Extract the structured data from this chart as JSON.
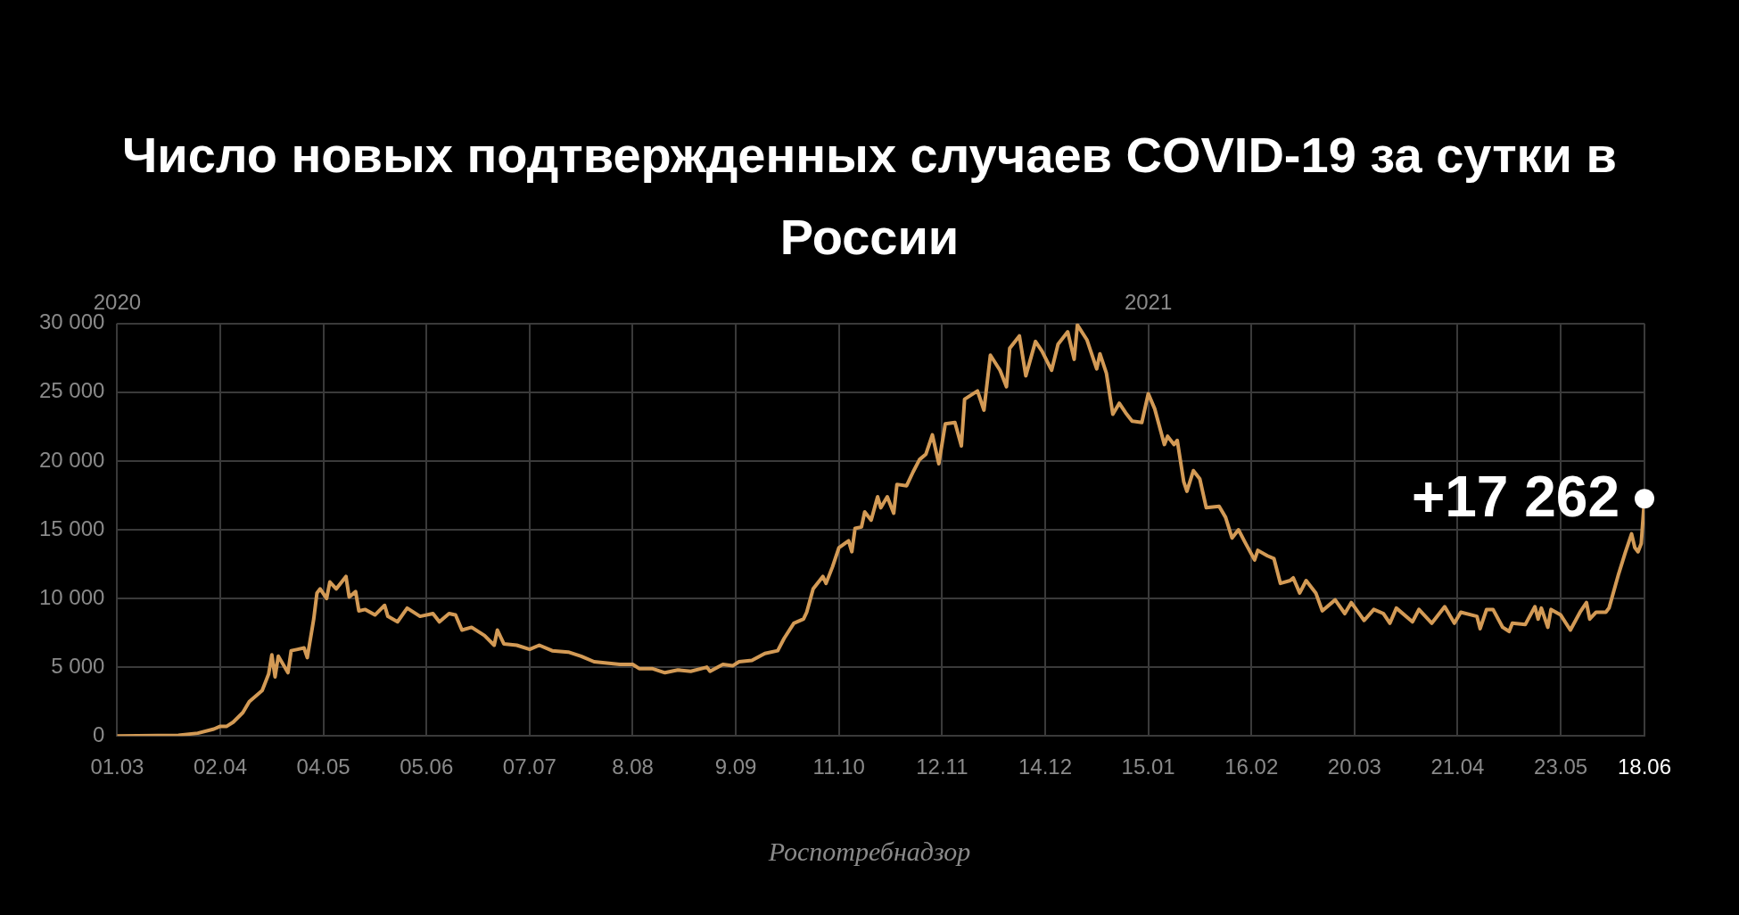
{
  "chart_data": {
    "type": "line",
    "title": "Число новых подтвержденных случаев COVID-19 за сутки в России",
    "annotations": [
      "Роспотребнадзор",
      {
        "text": "+17 262",
        "x": "2021-06-18",
        "y": 17262
      }
    ],
    "series": [
      {
        "color": "#d39a55",
        "x": [
          "2020-03-01",
          "2020-03-20",
          "2020-03-26",
          "2020-03-31",
          "2020-04-02",
          "2020-04-04",
          "2020-04-06",
          "2020-04-09",
          "2020-04-11",
          "2020-04-15",
          "2020-04-17",
          "2020-04-18",
          "2020-04-19",
          "2020-04-20",
          "2020-04-23",
          "2020-04-24",
          "2020-04-26",
          "2020-04-28",
          "2020-04-29",
          "2020-05-01",
          "2020-05-02",
          "2020-05-03",
          "2020-05-05",
          "2020-05-06",
          "2020-05-08",
          "2020-05-11",
          "2020-05-12",
          "2020-05-14",
          "2020-05-15",
          "2020-05-17",
          "2020-05-20",
          "2020-05-23",
          "2020-05-24",
          "2020-05-27",
          "2020-05-30",
          "2020-06-03",
          "2020-06-07",
          "2020-06-09",
          "2020-06-12",
          "2020-06-14",
          "2020-06-16",
          "2020-06-19",
          "2020-06-23",
          "2020-06-26",
          "2020-06-27",
          "2020-06-29",
          "2020-07-03",
          "2020-07-07",
          "2020-07-10",
          "2020-07-14",
          "2020-07-19",
          "2020-07-23",
          "2020-07-27",
          "2020-08-04",
          "2020-08-08",
          "2020-08-10",
          "2020-08-14",
          "2020-08-18",
          "2020-08-22",
          "2020-08-26",
          "2020-08-31",
          "2020-09-01",
          "2020-09-05",
          "2020-09-08",
          "2020-09-10",
          "2020-09-14",
          "2020-09-18",
          "2020-09-22",
          "2020-09-24",
          "2020-09-27",
          "2020-09-30",
          "2020-10-01",
          "2020-10-03",
          "2020-10-06",
          "2020-10-07",
          "2020-10-09",
          "2020-10-11",
          "2020-10-14",
          "2020-10-15",
          "2020-10-16",
          "2020-10-18",
          "2020-10-19",
          "2020-10-21",
          "2020-10-23",
          "2020-10-24",
          "2020-10-26",
          "2020-10-28",
          "2020-10-29",
          "2020-11-01",
          "2020-11-03",
          "2020-11-05",
          "2020-11-07",
          "2020-11-09",
          "2020-11-11",
          "2020-11-13",
          "2020-11-16",
          "2020-11-18",
          "2020-11-19",
          "2020-11-23",
          "2020-11-25",
          "2020-11-27",
          "2020-11-30",
          "2020-12-02",
          "2020-12-03",
          "2020-12-06",
          "2020-12-08",
          "2020-12-11",
          "2020-12-13",
          "2020-12-16",
          "2020-12-18",
          "2020-12-21",
          "2020-12-23",
          "2020-12-24",
          "2020-12-27",
          "2020-12-30",
          "2020-12-31",
          "2021-01-02",
          "2021-01-04",
          "2021-01-06",
          "2021-01-08",
          "2021-01-10",
          "2021-01-13",
          "2021-01-15",
          "2021-01-17",
          "2021-01-20",
          "2021-01-21",
          "2021-01-23",
          "2021-01-24",
          "2021-01-26",
          "2021-01-27",
          "2021-01-29",
          "2021-01-31",
          "2021-02-02",
          "2021-02-06",
          "2021-02-08",
          "2021-02-10",
          "2021-02-12",
          "2021-02-14",
          "2021-02-17",
          "2021-02-18",
          "2021-02-21",
          "2021-02-23",
          "2021-02-25",
          "2021-02-28",
          "2021-03-01",
          "2021-03-03",
          "2021-03-05",
          "2021-03-08",
          "2021-03-10",
          "2021-03-14",
          "2021-03-17",
          "2021-03-19",
          "2021-03-23",
          "2021-03-26",
          "2021-03-29",
          "2021-03-31",
          "2021-04-02",
          "2021-04-07",
          "2021-04-09",
          "2021-04-13",
          "2021-04-17",
          "2021-04-20",
          "2021-04-22",
          "2021-04-27",
          "2021-04-28",
          "2021-04-30",
          "2021-05-02",
          "2021-05-05",
          "2021-05-07",
          "2021-05-08",
          "2021-05-12",
          "2021-05-15",
          "2021-05-16",
          "2021-05-17",
          "2021-05-19",
          "2021-05-20",
          "2021-05-23",
          "2021-05-26",
          "2021-05-29",
          "2021-05-31",
          "2021-06-01",
          "2021-06-03",
          "2021-06-06",
          "2021-06-07",
          "2021-06-10",
          "2021-06-12",
          "2021-06-14",
          "2021-06-15",
          "2021-06-16",
          "2021-06-17",
          "2021-06-18"
        ],
        "values": [
          0,
          50,
          200,
          500,
          700,
          700,
          1000,
          1700,
          2500,
          3300,
          4500,
          5900,
          4300,
          5800,
          4600,
          6200,
          6300,
          6400,
          5700,
          8500,
          10400,
          10700,
          10000,
          11200,
          10700,
          11600,
          10100,
          10500,
          9100,
          9200,
          8800,
          9500,
          8700,
          8300,
          9300,
          8700,
          8900,
          8300,
          8900,
          8800,
          7700,
          7900,
          7300,
          6600,
          7700,
          6700,
          6600,
          6300,
          6600,
          6200,
          6100,
          5800,
          5400,
          5200,
          5200,
          4900,
          4900,
          4600,
          4800,
          4700,
          5000,
          4700,
          5200,
          5100,
          5400,
          5500,
          6000,
          6200,
          7100,
          8200,
          8500,
          9000,
          10700,
          11600,
          11100,
          12300,
          13700,
          14200,
          13400,
          15100,
          15200,
          16300,
          15700,
          17400,
          16600,
          17400,
          16200,
          18300,
          18200,
          19200,
          20100,
          20500,
          21900,
          19800,
          22700,
          22800,
          21100,
          24500,
          25100,
          23700,
          27700,
          26600,
          25400,
          28200,
          29100,
          26200,
          28700,
          28000,
          26600,
          28500,
          29400,
          27400,
          29900,
          28800,
          26700,
          27800,
          26400,
          23400,
          24200,
          23500,
          22900,
          22800,
          24900,
          23800,
          21200,
          21800,
          21200,
          21500,
          18500,
          17800,
          19300,
          18700,
          16600,
          16700,
          15900,
          14400,
          15000,
          14100,
          12800,
          13500,
          13100,
          12900,
          11100,
          11300,
          11500,
          10400,
          11300,
          10400,
          9100,
          9900,
          8900,
          9700,
          8400,
          9200,
          8900,
          8200,
          9300,
          8300,
          9200,
          8200,
          9400,
          8200,
          9000,
          8700,
          7800,
          9200,
          9200,
          7900,
          7600,
          8200,
          8100,
          9400,
          8500,
          9300,
          7900,
          9200,
          8800,
          7700,
          9000,
          9700,
          8500,
          9000,
          9000,
          9300,
          11800,
          13300,
          14700,
          13700,
          13400,
          14000,
          17262
        ]
      }
    ],
    "xlim": [
      "2020-03-01",
      "2021-06-18"
    ],
    "xticks": [
      {
        "value": "2020-03-01",
        "label": "01.03"
      },
      {
        "value": "2020-04-02",
        "label": "02.04"
      },
      {
        "value": "2020-05-04",
        "label": "04.05"
      },
      {
        "value": "2020-06-05",
        "label": "05.06"
      },
      {
        "value": "2020-07-07",
        "label": "07.07"
      },
      {
        "value": "2020-08-08",
        "label": "8.08"
      },
      {
        "value": "2020-09-09",
        "label": "9.09"
      },
      {
        "value": "2020-10-11",
        "label": "11.10"
      },
      {
        "value": "2020-11-12",
        "label": "12.11"
      },
      {
        "value": "2020-12-14",
        "label": "14.12"
      },
      {
        "value": "2021-01-15",
        "label": "15.01"
      },
      {
        "value": "2021-02-16",
        "label": "16.02"
      },
      {
        "value": "2021-03-20",
        "label": "20.03"
      },
      {
        "value": "2021-04-21",
        "label": "21.04"
      },
      {
        "value": "2021-05-23",
        "label": "23.05"
      },
      {
        "value": "2021-06-18",
        "label": "18.06"
      }
    ],
    "x2lim": [
      "2020-03-01",
      "2021-06-18"
    ],
    "x2ticks": [
      {
        "value": "2020-03-01",
        "label": "2020"
      },
      {
        "value": "2021-01-15",
        "label": "2021"
      }
    ],
    "ylim": [
      0,
      30000
    ],
    "yticks": [
      {
        "value": 0,
        "label": "0"
      },
      {
        "value": 5000,
        "label": "5 000"
      },
      {
        "value": 10000,
        "label": "10 000"
      },
      {
        "value": 15000,
        "label": "15 000"
      },
      {
        "value": 20000,
        "label": "20 000"
      },
      {
        "value": 25000,
        "label": "25 000"
      },
      {
        "value": 30000,
        "label": "30 000"
      }
    ],
    "grid": true,
    "legend": false
  }
}
